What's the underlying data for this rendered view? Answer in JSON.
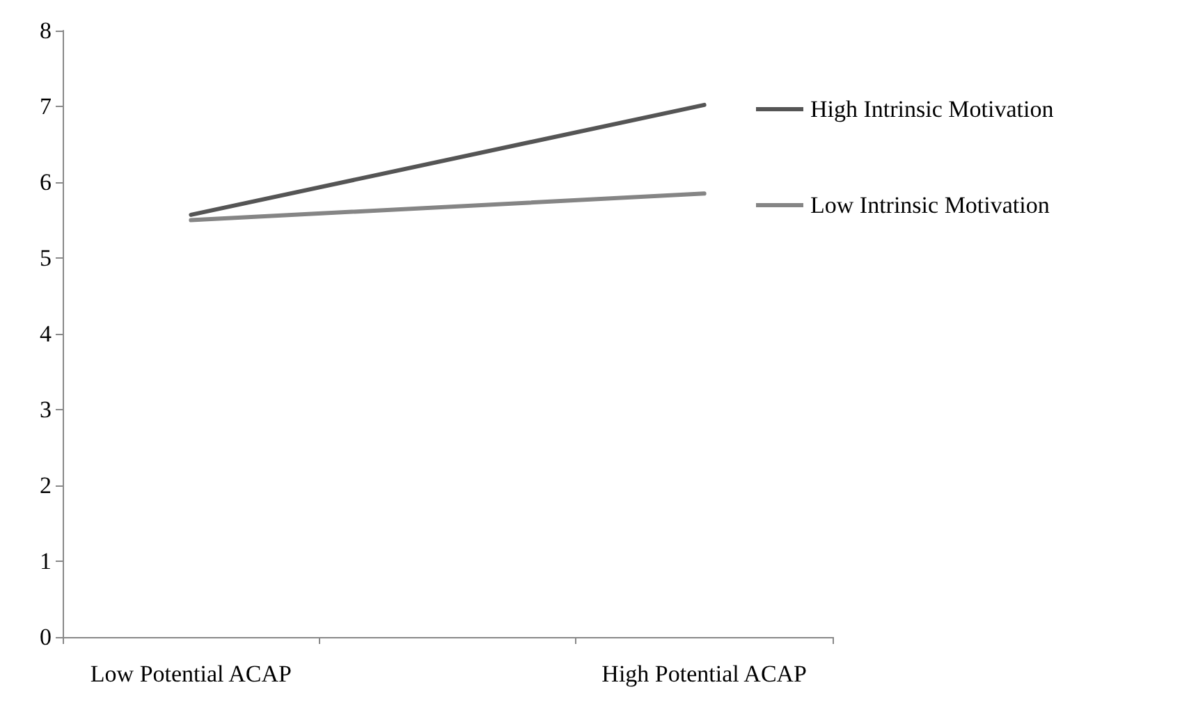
{
  "chart_data": {
    "type": "line",
    "categories": [
      "Low Potential ACAP",
      null,
      "High Potential ACAP"
    ],
    "series": [
      {
        "name": "High Intrinsic Motivation",
        "color": "#555555",
        "values": [
          5.57,
          null,
          7.02
        ]
      },
      {
        "name": "Low Intrinsic Motivation",
        "color": "#858585",
        "values": [
          5.5,
          null,
          5.85
        ]
      }
    ],
    "ylim": [
      0,
      8
    ],
    "yticks": [
      0,
      1,
      2,
      3,
      4,
      5,
      6,
      7,
      8
    ],
    "grid": false,
    "legend": "right",
    "marker": "none",
    "line_style": "solid"
  }
}
